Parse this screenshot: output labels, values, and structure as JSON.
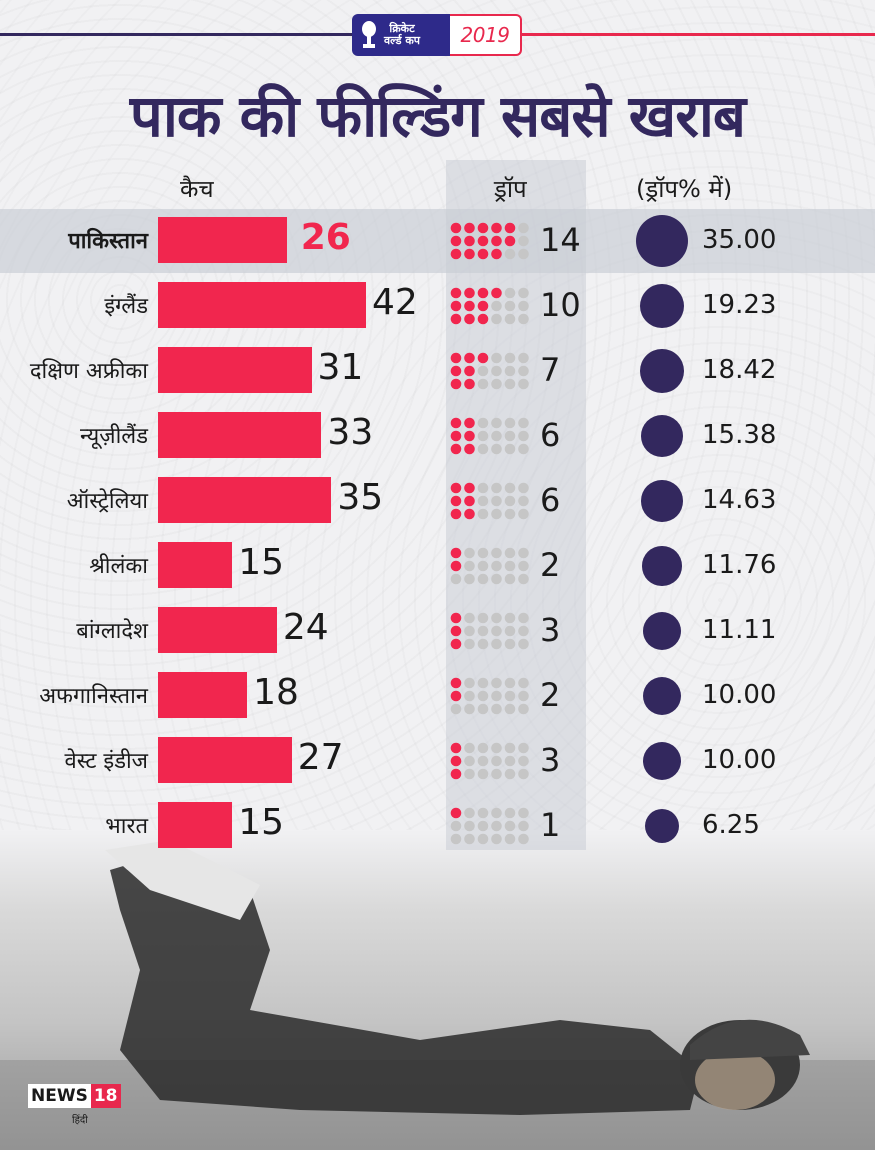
{
  "header": {
    "badge_line1": "क्रिकेट",
    "badge_line2": "वर्ल्ड कप",
    "badge_year": "2019",
    "title": "पाक की फील्डिंग सबसे खराब"
  },
  "columns": {
    "catches": "कैच",
    "drops": "ड्रॉप",
    "drop_pct": "(ड्रॉप% में)"
  },
  "highlight_country": "पाकिस्तान",
  "colors": {
    "bar": "#f1264e",
    "dot_filled": "#f1264e",
    "dot_empty": "#c6c6c6",
    "circle": "#33285e",
    "title": "#33285e"
  },
  "chart_data": {
    "type": "table",
    "categories": [
      "पाकिस्तान",
      "इंग्लैंड",
      "दक्षिण अफ्रीका",
      "न्यूज़ीलैंड",
      "ऑस्ट्रेलिया",
      "श्रीलंका",
      "बांग्लादेश",
      "अफगानिस्तान",
      "वेस्ट इंडीज",
      "भारत"
    ],
    "series": [
      {
        "name": "कैच",
        "values": [
          26,
          42,
          31,
          33,
          35,
          15,
          24,
          18,
          27,
          15
        ]
      },
      {
        "name": "ड्रॉप",
        "values": [
          14,
          10,
          7,
          6,
          6,
          2,
          3,
          2,
          3,
          1
        ]
      },
      {
        "name": "(ड्रॉप% में)",
        "values": [
          "35.00",
          "19.23",
          "18.42",
          "15.38",
          "14.63",
          "11.76",
          "11.11",
          "10.00",
          "10.00",
          "6.25"
        ]
      }
    ],
    "dots_per_row": 18
  },
  "branding": {
    "logo_main": "NEWS",
    "logo_num": "18",
    "logo_sub": "हिंदी"
  }
}
